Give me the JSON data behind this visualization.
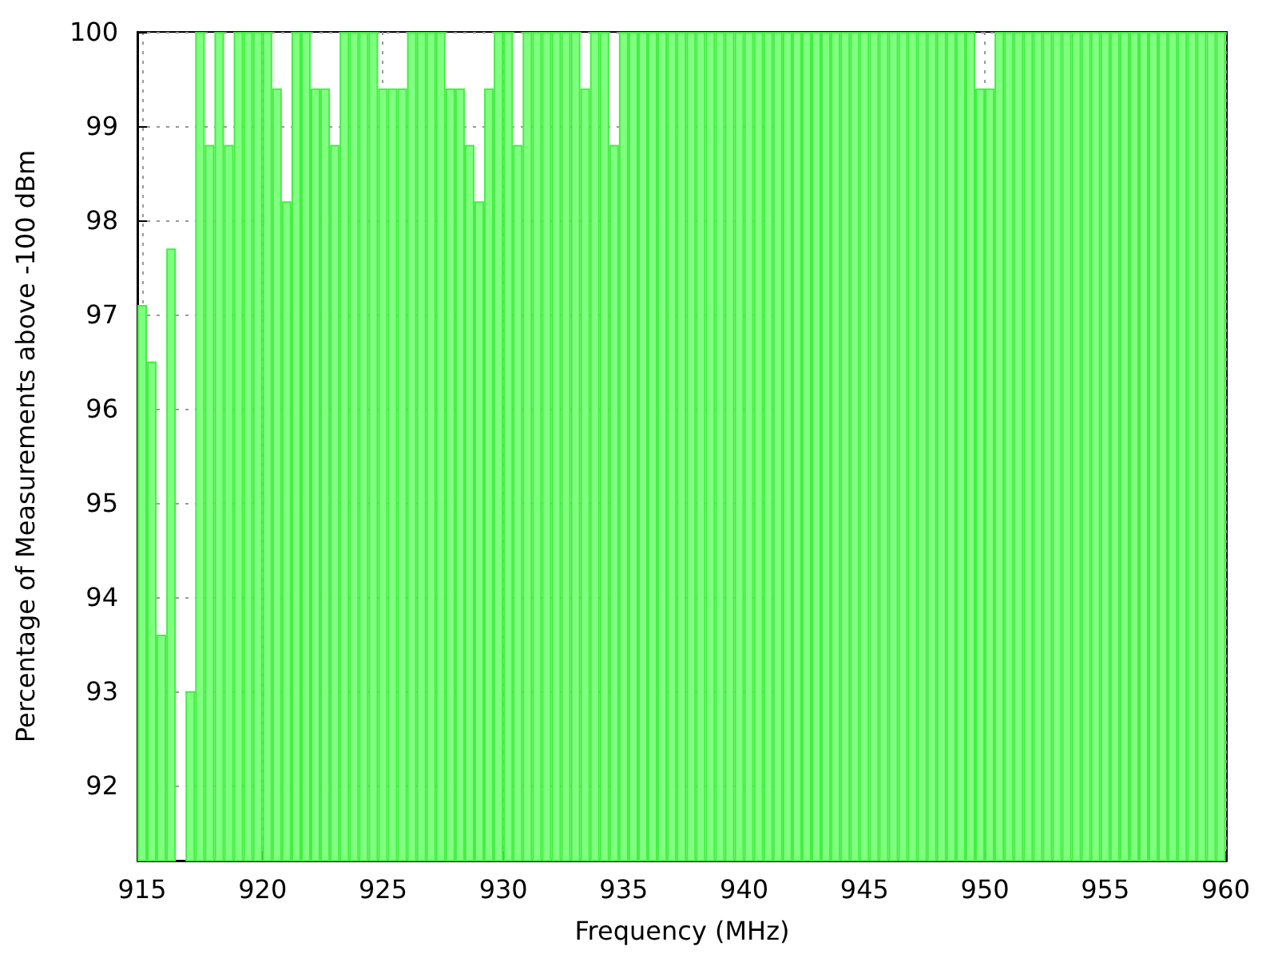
{
  "chart_data": {
    "type": "bar",
    "xlabel": "Frequency (MHz)",
    "ylabel": "Percentage of Measurements above -100 dBm",
    "x": [
      915,
      915.4,
      915.8,
      916.2,
      916.6,
      917,
      917.4,
      917.8,
      918.2,
      918.6,
      919,
      919.4,
      919.8,
      920.2,
      920.6,
      921,
      921.4,
      921.8,
      922.2,
      922.6,
      923,
      923.4,
      923.8,
      924.2,
      924.6,
      925,
      925.4,
      925.8,
      926.2,
      926.6,
      927,
      927.4,
      927.8,
      928.2,
      928.6,
      929,
      929.4,
      929.8,
      930.2,
      930.6,
      931,
      931.4,
      931.8,
      932.2,
      932.6,
      933,
      933.4,
      933.8,
      934.2,
      934.6,
      935,
      935.4,
      935.8,
      936.2,
      936.6,
      937,
      937.4,
      937.8,
      938.2,
      938.6,
      939,
      939.4,
      939.8,
      940.2,
      940.6,
      941,
      941.4,
      941.8,
      942.2,
      942.6,
      943,
      943.4,
      943.8,
      944.2,
      944.6,
      945,
      945.4,
      945.8,
      946.2,
      946.6,
      947,
      947.4,
      947.8,
      948.2,
      948.6,
      949,
      949.4,
      949.8,
      950.2,
      950.6,
      951,
      951.4,
      951.8,
      952.2,
      952.6,
      953,
      953.4,
      953.8,
      954.2,
      954.6,
      955,
      955.4,
      955.8,
      956.2,
      956.6,
      957,
      957.4,
      957.8,
      958.2,
      958.6,
      959,
      959.4,
      959.8
    ],
    "values": [
      97.1,
      96.5,
      93.6,
      97.7,
      null,
      93.0,
      100,
      98.8,
      100,
      98.8,
      100,
      100,
      100,
      100,
      99.4,
      98.2,
      100,
      100,
      99.4,
      99.4,
      98.8,
      100,
      100,
      100,
      100,
      99.4,
      99.4,
      99.4,
      100,
      100,
      100,
      100,
      99.4,
      99.4,
      98.8,
      98.2,
      99.4,
      100,
      100,
      98.8,
      100,
      100,
      100,
      100,
      100,
      100,
      99.4,
      100,
      100,
      98.8,
      100,
      100,
      100,
      100,
      100,
      100,
      100,
      100,
      100,
      100,
      100,
      100,
      100,
      100,
      100,
      100,
      100,
      100,
      100,
      100,
      100,
      100,
      100,
      100,
      100,
      100,
      100,
      100,
      100,
      100,
      100,
      100,
      100,
      100,
      100,
      100,
      100,
      99.4,
      99.4,
      100,
      100,
      100,
      100,
      100,
      100,
      100,
      100,
      100,
      100,
      100,
      100,
      100,
      100,
      100,
      100,
      100,
      100,
      100,
      100,
      100,
      100,
      100,
      100
    ],
    "color": "#80ff80",
    "xlim": [
      914.8,
      960.05
    ],
    "xticks": [
      915,
      920,
      925,
      930,
      935,
      940,
      945,
      950,
      955,
      960
    ],
    "ylim": [
      91.2,
      100
    ],
    "yticks": [
      92,
      93,
      94,
      95,
      96,
      97,
      98,
      99,
      100
    ],
    "grid": true
  }
}
